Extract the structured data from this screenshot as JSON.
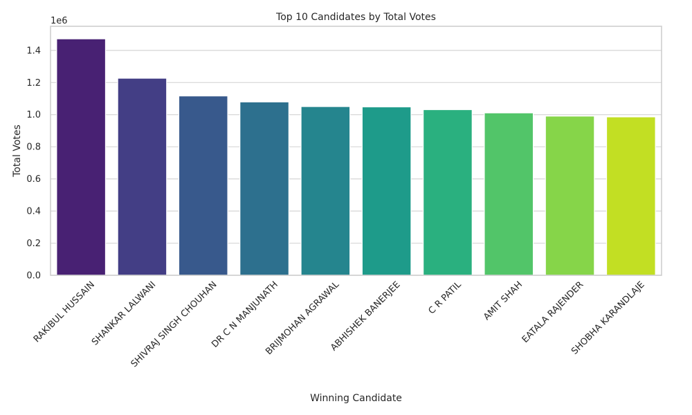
{
  "chart_data": {
    "type": "bar",
    "title": "Top 10 Candidates by Total Votes",
    "xlabel": "Winning Candidate",
    "ylabel": "Total Votes",
    "y_scale_multiplier_label": "1e6",
    "categories": [
      "RAKIBUL HUSSAIN",
      "SHANKAR LALWANI",
      "SHIVRAJ SINGH CHOUHAN",
      "DR C N MANJUNATH",
      "BRIJMOHAN AGRAWAL",
      "ABHISHEK BANERJEE",
      "C R PATIL",
      "AMIT SHAH",
      "EATALA RAJENDER",
      "SHOBHA KARANDLAJE"
    ],
    "values": [
      1471885,
      1226751,
      1116460,
      1079002,
      1050351,
      1048230,
      1031065,
      1010972,
      991042,
      986049
    ],
    "ylim": [
      0,
      1550000
    ],
    "y_ticks": [
      0,
      200000,
      400000,
      600000,
      800000,
      1000000,
      1200000,
      1400000
    ],
    "y_tick_labels": [
      "0.0",
      "0.2",
      "0.4",
      "0.6",
      "0.8",
      "1.0",
      "1.2",
      "1.4"
    ],
    "grid": true,
    "colors": [
      "#482173",
      "#433e85",
      "#38598c",
      "#2d708e",
      "#25858e",
      "#1e9b8a",
      "#2ab07f",
      "#52c569",
      "#86d549",
      "#c2df23"
    ]
  }
}
